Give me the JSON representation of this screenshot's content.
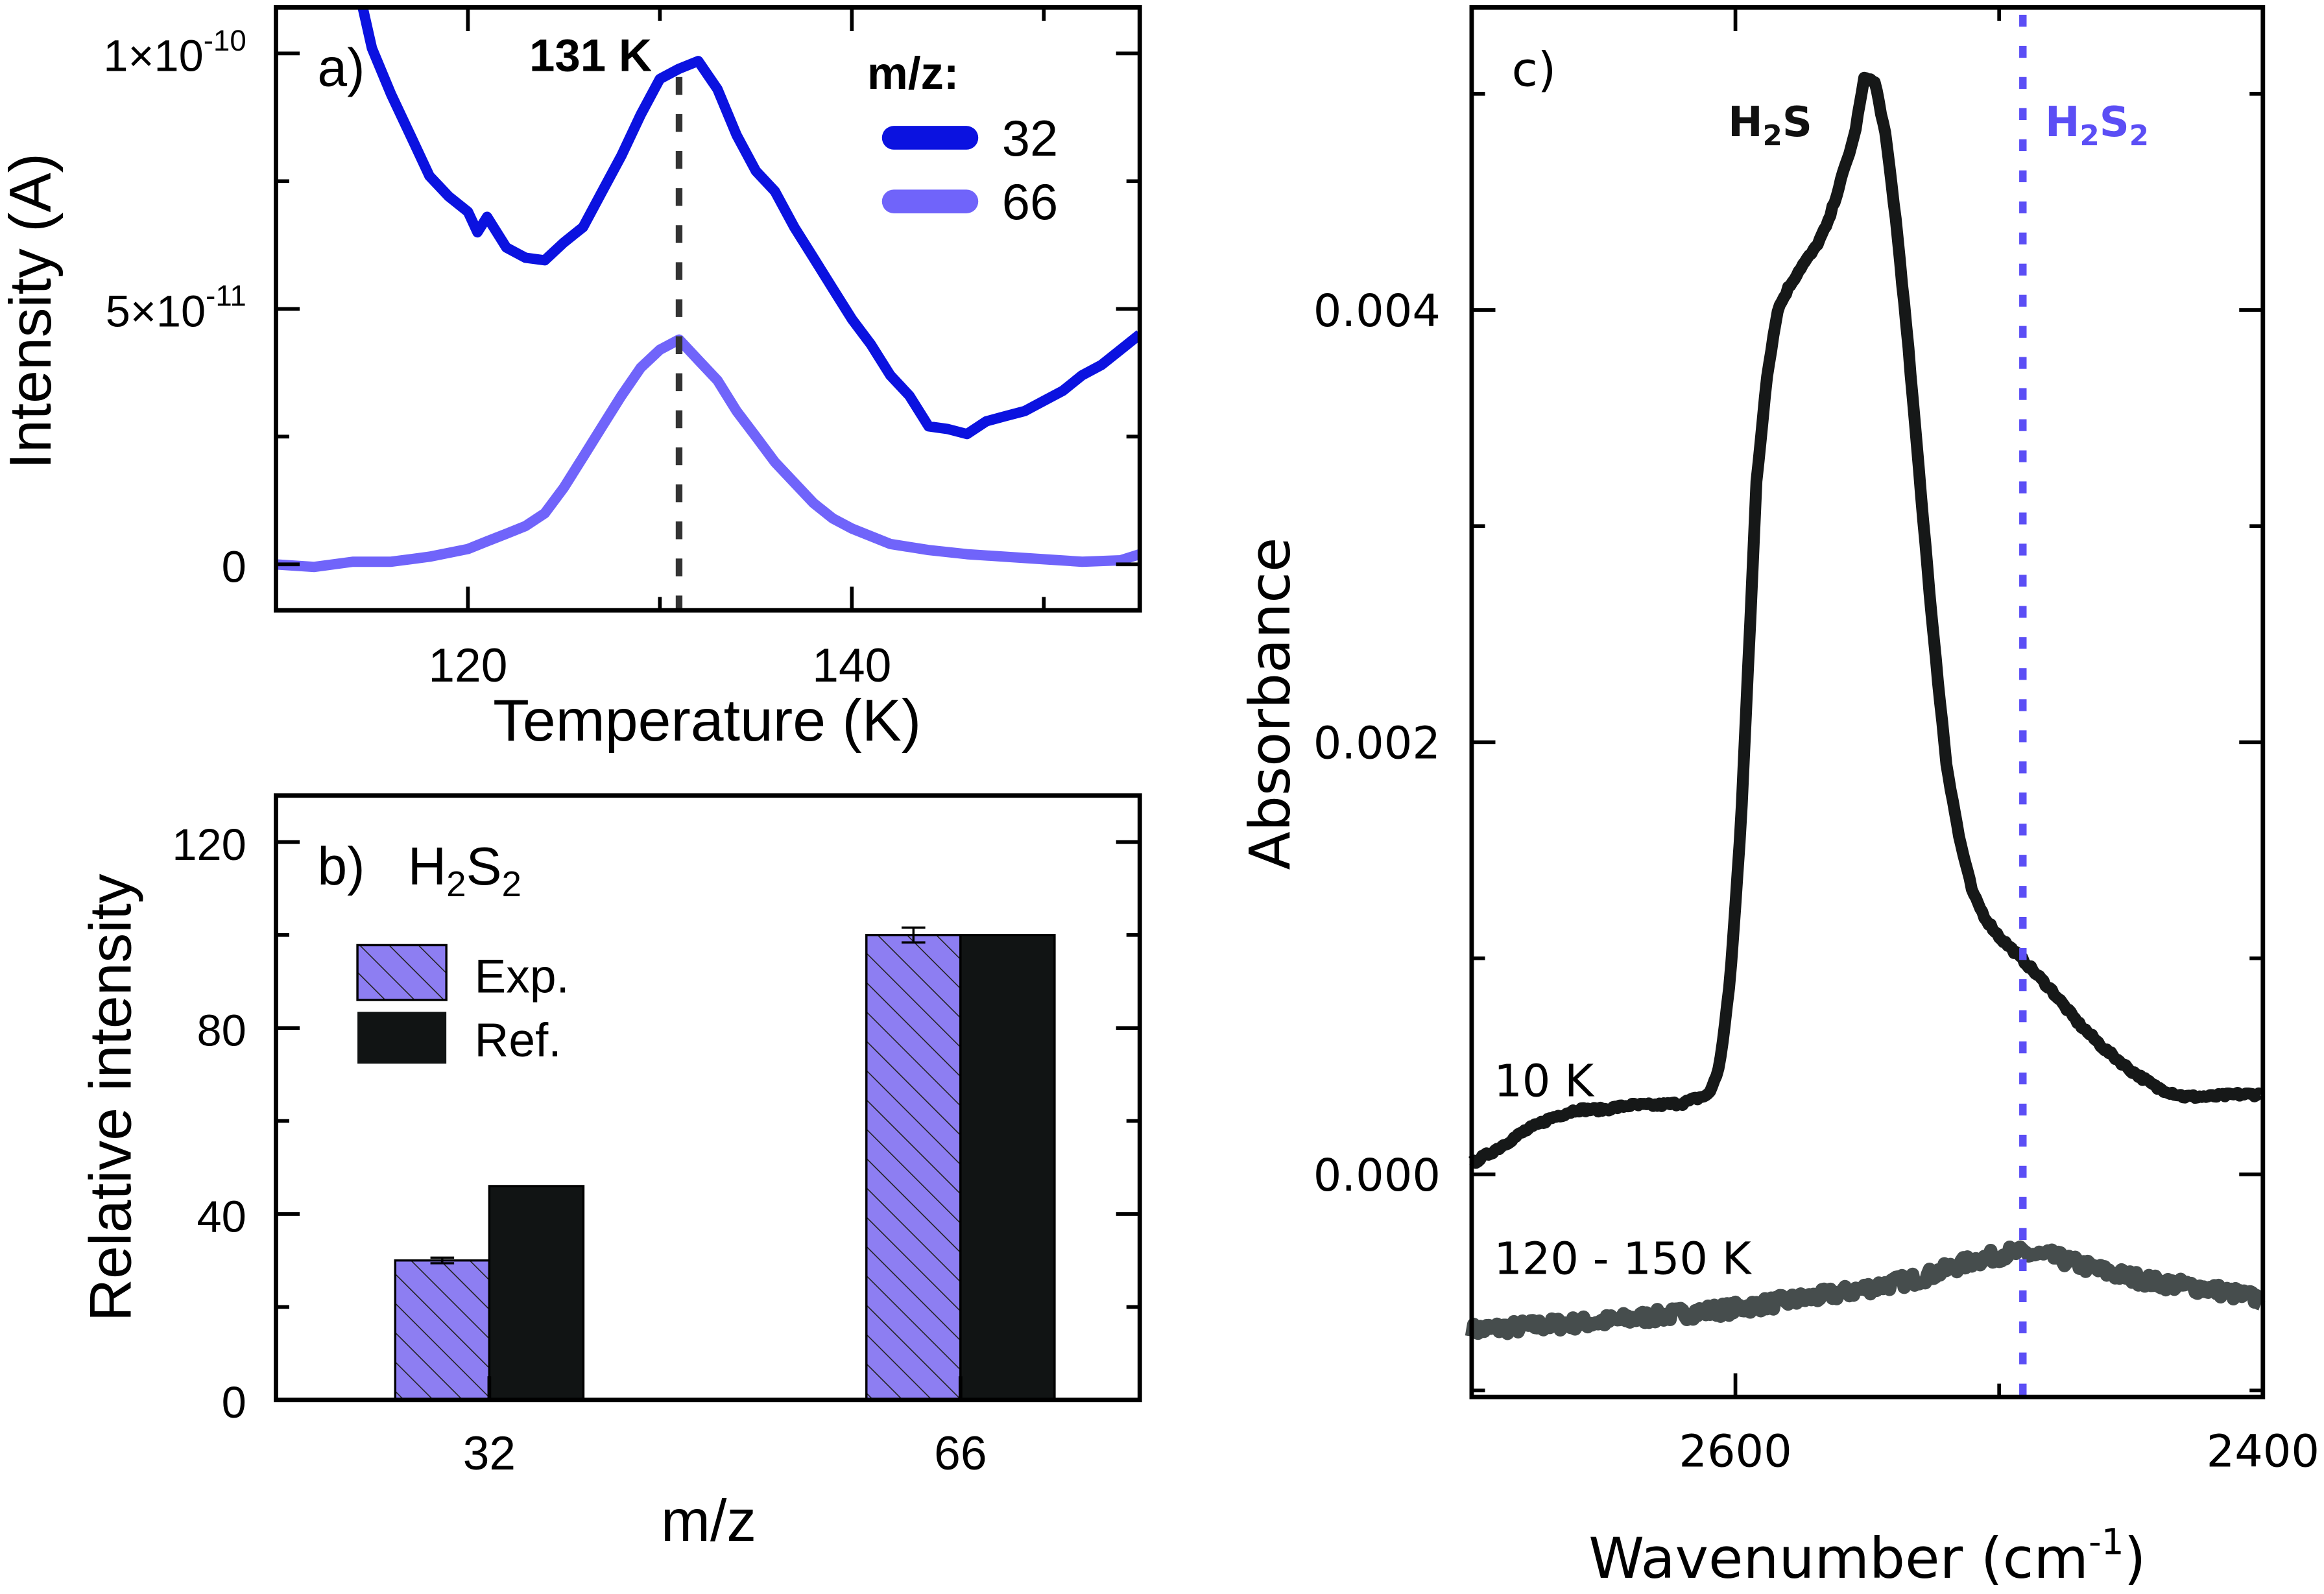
{
  "chart_data": [
    {
      "panel": "a)",
      "type": "line",
      "xlabel": "Temperature (K)",
      "ylabel": "Intensity (A)",
      "xlim": [
        110,
        155
      ],
      "ylim_units_1e-11_A": [
        -0.9,
        10.9
      ],
      "xticks": [
        {
          "v": 120,
          "label": "120"
        },
        {
          "v": 140,
          "label": "140"
        }
      ],
      "xminor": [
        110,
        130,
        150
      ],
      "yticks": [
        {
          "v": 0,
          "mant": "0",
          "exp": ""
        },
        {
          "v": 5,
          "mant": "5×10",
          "exp": "-11"
        },
        {
          "v": 10,
          "mant": "1×10",
          "exp": "-10"
        }
      ],
      "yminor": [
        2.5,
        7.5
      ],
      "annotation": {
        "label": "131 K",
        "x": 131,
        "style": "dashed vertical line"
      },
      "legend": {
        "title": "m/z:",
        "placement": "top-right"
      },
      "series": [
        {
          "name": "32",
          "color": "#0b12e0",
          "x": [
            114.4,
            115,
            116,
            117,
            118,
            119,
            120,
            120.5,
            121,
            122,
            123,
            124,
            125,
            126,
            127,
            128,
            129,
            130,
            131,
            132,
            133,
            134,
            135,
            136,
            137,
            138,
            139,
            140,
            141,
            142,
            143,
            144,
            145,
            146,
            147,
            148,
            149,
            150,
            151,
            152,
            153,
            154,
            155
          ],
          "y": [
            11.1,
            10.1,
            9.2,
            8.4,
            7.6,
            7.2,
            6.9,
            6.5,
            6.8,
            6.2,
            6.0,
            5.95,
            6.3,
            6.6,
            7.3,
            8.0,
            8.8,
            9.5,
            9.7,
            9.85,
            9.3,
            8.4,
            7.7,
            7.3,
            6.6,
            6.0,
            5.4,
            4.8,
            4.3,
            3.7,
            3.3,
            2.7,
            2.65,
            2.55,
            2.8,
            2.9,
            3.0,
            3.2,
            3.4,
            3.7,
            3.9,
            4.2,
            4.5
          ]
        },
        {
          "name": "66",
          "color": "#7064fa",
          "x": [
            110,
            112,
            114,
            116,
            118,
            120,
            121,
            122,
            123,
            124,
            125,
            126,
            127,
            128,
            129,
            130,
            131,
            132,
            133,
            134,
            135,
            136,
            137,
            138,
            139,
            140,
            142,
            144,
            146,
            148,
            150,
            152,
            154,
            155
          ],
          "y": [
            0,
            -0.05,
            0.05,
            0.05,
            0.15,
            0.3,
            0.45,
            0.6,
            0.75,
            1.0,
            1.5,
            2.1,
            2.7,
            3.3,
            3.85,
            4.2,
            4.4,
            4.0,
            3.6,
            3.0,
            2.5,
            2.0,
            1.6,
            1.2,
            0.9,
            0.7,
            0.4,
            0.28,
            0.2,
            0.15,
            0.1,
            0.05,
            0.08,
            0.2
          ]
        }
      ]
    },
    {
      "panel": "b)",
      "type": "bar",
      "title": [
        "H",
        "2",
        "S",
        "2"
      ],
      "xlabel": "m/z",
      "ylabel": "Relative intensity",
      "categories": [
        "32",
        "66"
      ],
      "ylim": [
        0,
        130
      ],
      "yticks": [
        {
          "v": 0,
          "label": "0"
        },
        {
          "v": 40,
          "label": "40"
        },
        {
          "v": 80,
          "label": "80"
        },
        {
          "v": 120,
          "label": "120"
        }
      ],
      "yminor": [
        20,
        60,
        100
      ],
      "legend": {
        "placement": "top-left"
      },
      "series": [
        {
          "name": "Exp.",
          "color": "#8d7ef2",
          "pattern": "hatched",
          "values": [
            30,
            100
          ],
          "errors": [
            0.6,
            1.6
          ]
        },
        {
          "name": "Ref.",
          "color": "#111414",
          "values": [
            46,
            100
          ]
        }
      ]
    },
    {
      "panel": "c)",
      "type": "line",
      "xlabel": [
        "Wavenumber (cm",
        "-1",
        ")"
      ],
      "ylabel": "Absorbance",
      "xlim": [
        2700,
        2400
      ],
      "ylim": [
        -0.00103,
        0.0054
      ],
      "xticks": [
        {
          "v": 2600,
          "label": "2600"
        },
        {
          "v": 2400,
          "label": "2400"
        }
      ],
      "xminor": [
        2700,
        2500
      ],
      "yticks": [
        {
          "v": 0,
          "label": "0.000"
        },
        {
          "v": 0.002,
          "label": "0.002"
        },
        {
          "v": 0.004,
          "label": "0.004"
        }
      ],
      "yminor": [
        -0.001,
        0.001,
        0.003,
        0.005
      ],
      "annotations": [
        {
          "label": [
            "H",
            "2",
            "S"
          ],
          "color": "#111111"
        },
        {
          "label": [
            "H",
            "2",
            "S",
            "2"
          ],
          "color": "#5b4ef5",
          "x": 2491,
          "style": "dotted vertical line"
        }
      ],
      "series": [
        {
          "name": "10 K",
          "color": "#161818",
          "x": [
            2700,
            2690,
            2680,
            2670,
            2660,
            2650,
            2640,
            2630,
            2620,
            2610,
            2606,
            2602,
            2598,
            2595,
            2592,
            2588,
            2584,
            2580,
            2575,
            2570,
            2565,
            2560,
            2555,
            2551,
            2547,
            2543,
            2539,
            2535,
            2530,
            2525,
            2520,
            2515,
            2510,
            2505,
            2500,
            2490,
            2480,
            2470,
            2460,
            2450,
            2440,
            2430,
            2420,
            2410,
            2400
          ],
          "y": [
            5e-05,
            0.00012,
            0.0002,
            0.00026,
            0.0003,
            0.0003,
            0.00032,
            0.00032,
            0.00033,
            0.00037,
            0.0005,
            0.0009,
            0.0016,
            0.0024,
            0.0032,
            0.0037,
            0.004,
            0.0041,
            0.0042,
            0.00428,
            0.0044,
            0.0046,
            0.0048,
            0.00508,
            0.00505,
            0.0048,
            0.0044,
            0.0039,
            0.0032,
            0.0025,
            0.0019,
            0.00155,
            0.0013,
            0.00118,
            0.0011,
            0.00098,
            0.00085,
            0.0007,
            0.00058,
            0.00048,
            0.0004,
            0.00036,
            0.00036,
            0.00037,
            0.00037
          ]
        },
        {
          "name": "120 - 150 K",
          "color": "#464d4d",
          "x": [
            2700,
            2650,
            2600,
            2560,
            2530,
            2510,
            2495,
            2480,
            2460,
            2440,
            2420,
            2400
          ],
          "y": [
            -0.00072,
            -0.00068,
            -0.00062,
            -0.00055,
            -0.00048,
            -0.0004,
            -0.00036,
            -0.00038,
            -0.00045,
            -0.0005,
            -0.00053,
            -0.00058
          ]
        }
      ]
    }
  ]
}
